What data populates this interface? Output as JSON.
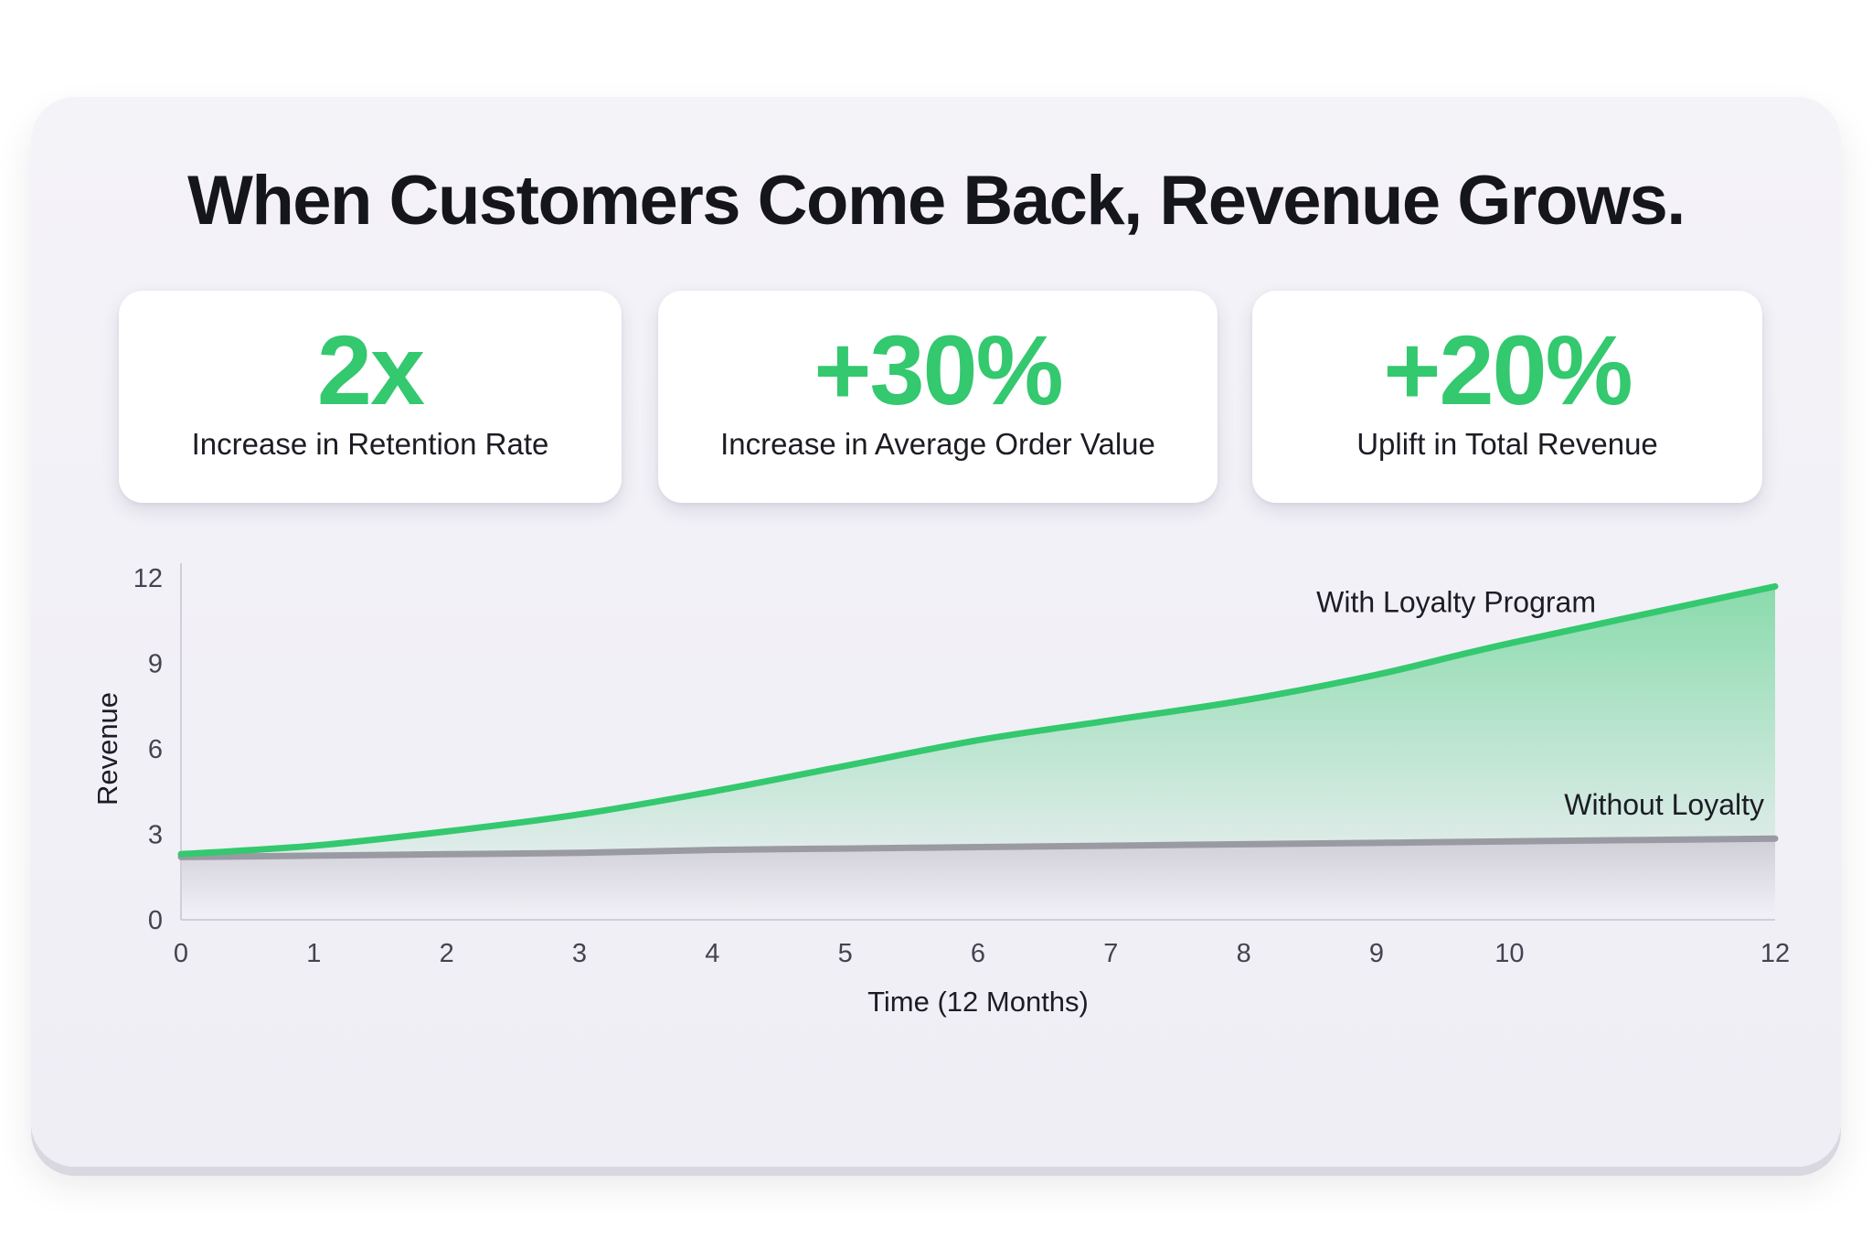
{
  "title": "When Customers Come Back, Revenue Grows.",
  "stats": [
    {
      "value": "2x",
      "label": "Increase in Retention Rate"
    },
    {
      "value": "+30%",
      "label": "Increase in Average Order Value"
    },
    {
      "value": "+20%",
      "label": "Uplift in Total Revenue"
    }
  ],
  "colors": {
    "accent": "#34c86f",
    "baseline": "#9a9aa2",
    "text": "#15151c"
  },
  "chart_data": {
    "type": "area",
    "xlabel": "Time (12 Months)",
    "ylabel": "Revenue",
    "xlim": [
      0,
      12
    ],
    "ylim": [
      0,
      12
    ],
    "x_ticks": [
      0,
      1,
      2,
      3,
      4,
      5,
      6,
      7,
      8,
      9,
      10,
      12
    ],
    "y_ticks": [
      0,
      3,
      6,
      9,
      12
    ],
    "grid": false,
    "legend": "inline labels",
    "series": [
      {
        "name": "With Loyalty Program",
        "color": "#34c86f",
        "x": [
          0,
          1,
          2,
          3,
          4,
          5,
          6,
          7,
          8,
          9,
          10,
          12
        ],
        "y": [
          2.3,
          2.6,
          3.1,
          3.7,
          4.5,
          5.4,
          6.3,
          7.0,
          7.7,
          8.6,
          9.7,
          11.7
        ]
      },
      {
        "name": "Without Loyalty",
        "color": "#9a9aa2",
        "x": [
          0,
          1,
          2,
          3,
          4,
          5,
          6,
          7,
          8,
          9,
          10,
          12
        ],
        "y": [
          2.2,
          2.25,
          2.3,
          2.35,
          2.45,
          2.5,
          2.55,
          2.6,
          2.65,
          2.7,
          2.75,
          2.85
        ]
      }
    ]
  }
}
